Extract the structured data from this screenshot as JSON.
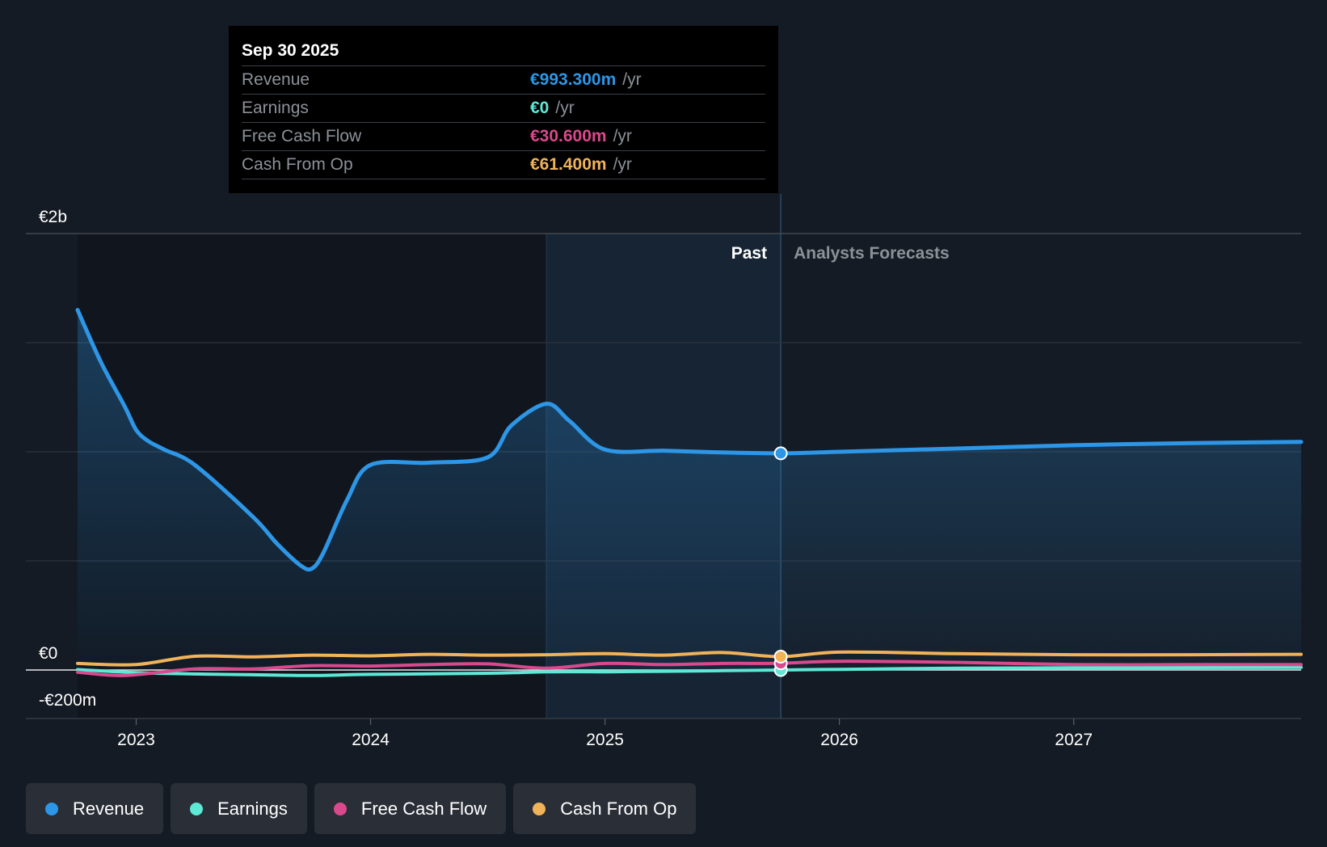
{
  "tooltip": {
    "date": "Sep 30 2025",
    "rows": [
      {
        "label": "Revenue",
        "value": "€993.300m",
        "unit": "/yr",
        "color": "#2d96e6"
      },
      {
        "label": "Earnings",
        "value": "€0",
        "unit": "/yr",
        "color": "#5ee8d6"
      },
      {
        "label": "Free Cash Flow",
        "value": "€30.600m",
        "unit": "/yr",
        "color": "#d9498d"
      },
      {
        "label": "Cash From Op",
        "value": "€61.400m",
        "unit": "/yr",
        "color": "#f0b35a"
      }
    ]
  },
  "legend": [
    {
      "label": "Revenue",
      "color": "#2d96e6"
    },
    {
      "label": "Earnings",
      "color": "#5ee8d6"
    },
    {
      "label": "Free Cash Flow",
      "color": "#d9498d"
    },
    {
      "label": "Cash From Op",
      "color": "#f0b35a"
    }
  ],
  "chart_data": {
    "type": "line",
    "y_unit": "€m",
    "ylim": [
      -200,
      2000
    ],
    "y_tick_labels": [
      {
        "value": 2000,
        "label": "€2b"
      },
      {
        "value": 0,
        "label": "€0"
      },
      {
        "value": -200,
        "label": "-€200m"
      }
    ],
    "gridlines": [
      2000,
      1500,
      1000,
      500
    ],
    "xlim": [
      2022.75,
      2027.97
    ],
    "x_ticks": [
      2023,
      2024,
      2025,
      2026,
      2027
    ],
    "x_tick_labels": [
      "2023",
      "2024",
      "2025",
      "2026",
      "2027"
    ],
    "past_label": "Past",
    "forecast_label": "Analysts Forecasts",
    "past_end": 2025.75,
    "highlight_start": 2024.75,
    "series": [
      {
        "name": "Revenue",
        "color": "#2d96e6",
        "fill": true,
        "x": [
          2022.75,
          2022.85,
          2022.95,
          2023.0,
          2023.05,
          2023.12,
          2023.25,
          2023.5,
          2023.6,
          2023.7,
          2023.75,
          2023.8,
          2023.9,
          2024.0,
          2024.25,
          2024.5,
          2024.6,
          2024.75,
          2024.85,
          2025.0,
          2025.25,
          2025.5,
          2025.75,
          2026.0,
          2026.5,
          2027.0,
          2027.5,
          2027.97
        ],
        "values": [
          1650,
          1410,
          1210,
          1100,
          1050,
          1010,
          940,
          700,
          580,
          480,
          465,
          540,
          780,
          940,
          950,
          975,
          1120,
          1220,
          1140,
          1010,
          1005,
          997,
          993,
          1000,
          1015,
          1030,
          1040,
          1045
        ]
      },
      {
        "name": "Earnings",
        "color": "#5ee8d6",
        "fill": false,
        "x": [
          2022.75,
          2023.0,
          2023.25,
          2023.5,
          2023.75,
          2024.0,
          2024.5,
          2024.75,
          2025.0,
          2025.25,
          2025.5,
          2025.75,
          2026.0,
          2026.5,
          2027.0,
          2027.5,
          2027.97
        ],
        "values": [
          2,
          -12,
          -18,
          -22,
          -25,
          -20,
          -15,
          -8,
          -8,
          -6,
          -3,
          0,
          3,
          8,
          10,
          11,
          12
        ]
      },
      {
        "name": "Free Cash Flow",
        "color": "#d9498d",
        "fill": false,
        "x": [
          2022.75,
          2022.95,
          2023.25,
          2023.5,
          2023.75,
          2024.0,
          2024.25,
          2024.5,
          2024.75,
          2025.0,
          2025.25,
          2025.5,
          2025.75,
          2026.0,
          2026.5,
          2027.0,
          2027.5,
          2027.97
        ],
        "values": [
          -10,
          -25,
          5,
          5,
          20,
          18,
          25,
          28,
          8,
          30,
          25,
          30,
          31,
          40,
          35,
          25,
          25,
          25
        ]
      },
      {
        "name": "Cash From Op",
        "color": "#f0b35a",
        "fill": false,
        "x": [
          2022.75,
          2023.0,
          2023.25,
          2023.5,
          2023.75,
          2024.0,
          2024.25,
          2024.5,
          2024.75,
          2025.0,
          2025.25,
          2025.5,
          2025.75,
          2026.0,
          2026.5,
          2027.0,
          2027.5,
          2027.97
        ],
        "values": [
          30,
          25,
          63,
          60,
          68,
          65,
          72,
          68,
          70,
          75,
          68,
          80,
          61,
          82,
          75,
          70,
          70,
          72
        ]
      }
    ]
  }
}
